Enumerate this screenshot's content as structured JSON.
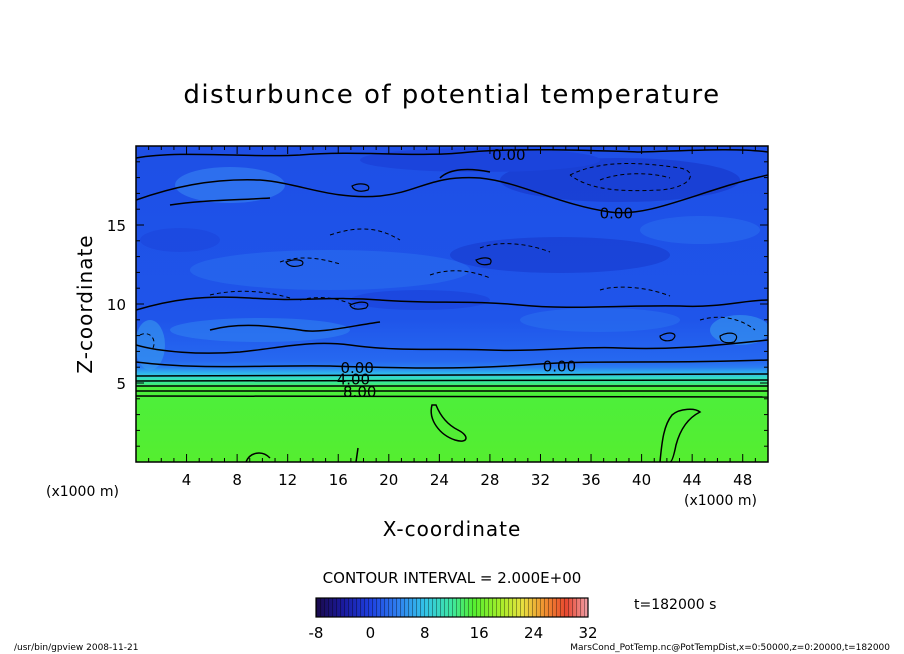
{
  "chart_data": {
    "type": "heatmap",
    "title": "disturbunce of potential temperature",
    "xlabel": "X-coordinate",
    "ylabel": "Z-coordinate",
    "x_unit_left": "(x1000 m)",
    "x_unit_right": "(x1000 m)",
    "xlim": [
      0,
      50
    ],
    "ylim": [
      0,
      20
    ],
    "x_ticks": [
      4,
      8,
      12,
      16,
      20,
      24,
      28,
      32,
      36,
      40,
      44,
      48
    ],
    "y_ticks": [
      5,
      10,
      15
    ],
    "contour_interval_text": "CONTOUR INTERVAL = 2.000E+00",
    "time_text": "t=182000 s",
    "contour_labels": [
      {
        "text": "0.00",
        "x": 29.5,
        "z": 19.5
      },
      {
        "text": "0.00",
        "x": 38.0,
        "z": 15.8
      },
      {
        "text": "0.00",
        "x": 17.5,
        "z": 6.0
      },
      {
        "text": "0.00",
        "x": 33.5,
        "z": 6.1
      },
      {
        "text": "4.00",
        "x": 17.2,
        "z": 5.3
      },
      {
        "text": "8.00",
        "x": 17.7,
        "z": 4.5
      }
    ],
    "colorbar": {
      "min": -8,
      "max": 32,
      "ticks": [
        -8,
        0,
        8,
        16,
        24,
        32
      ],
      "colors": [
        "#1a0a4a",
        "#1a1a9e",
        "#1e40e0",
        "#2f7ff0",
        "#33c4e8",
        "#3ee8a0",
        "#55ee30",
        "#a8ee2a",
        "#e8e040",
        "#f09030",
        "#e84830",
        "#f0a0a8"
      ]
    },
    "field": {
      "upper_value_range": [
        -2,
        2
      ],
      "transition_z": [
        4.2,
        6.0
      ],
      "lower_value": 10
    }
  },
  "footer": {
    "left": "/usr/bin/gpview   2008-11-21",
    "right": "MarsCond_PotTemp.nc@PotTempDist,x=0:50000,z=0:20000,t=182000"
  }
}
